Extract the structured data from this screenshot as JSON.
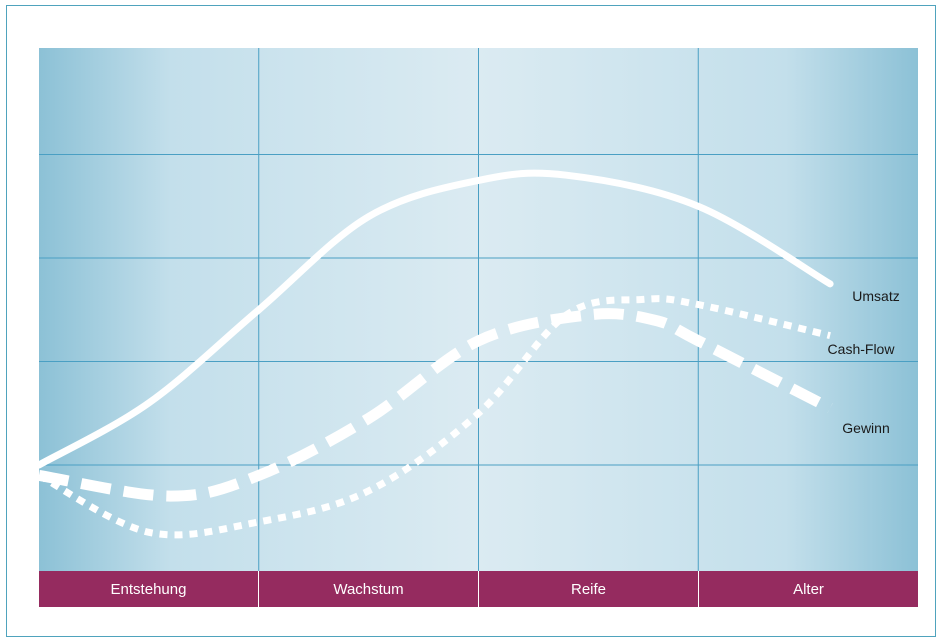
{
  "chart_data": {
    "type": "line",
    "title": "",
    "xlabel": "",
    "ylabel": "",
    "categories": [
      "Entstehung",
      "Wachstum",
      "Reife",
      "Alter"
    ],
    "xlim": [
      0,
      4
    ],
    "ylim": [
      -1,
      4
    ],
    "grid": true,
    "series": [
      {
        "name": "Umsatz",
        "style": "solid",
        "x": [
          0,
          0.5,
          1.0,
          1.5,
          2.0,
          2.4,
          3.0,
          3.6
        ],
        "y": [
          0,
          0.6,
          1.5,
          2.4,
          2.75,
          2.8,
          2.5,
          1.75
        ]
      },
      {
        "name": "Cash-Flow",
        "style": "dotted",
        "x": [
          0,
          0.5,
          1.0,
          1.5,
          2.0,
          2.4,
          2.75,
          3.0,
          3.6
        ],
        "y": [
          -0.1,
          -0.65,
          -0.55,
          -0.25,
          0.5,
          1.45,
          1.6,
          1.55,
          1.25
        ]
      },
      {
        "name": "Gewinn",
        "style": "dashed",
        "x": [
          0,
          0.6,
          1.0,
          1.5,
          2.0,
          2.5,
          2.8,
          3.0,
          3.6
        ],
        "y": [
          -0.1,
          -0.3,
          -0.1,
          0.45,
          1.2,
          1.45,
          1.4,
          1.2,
          0.55
        ]
      }
    ]
  },
  "colors": {
    "frame": "#4fa3bd",
    "phase_band": "#952b5f",
    "curve": "#ffffff",
    "grid": "#4a9fc3"
  }
}
